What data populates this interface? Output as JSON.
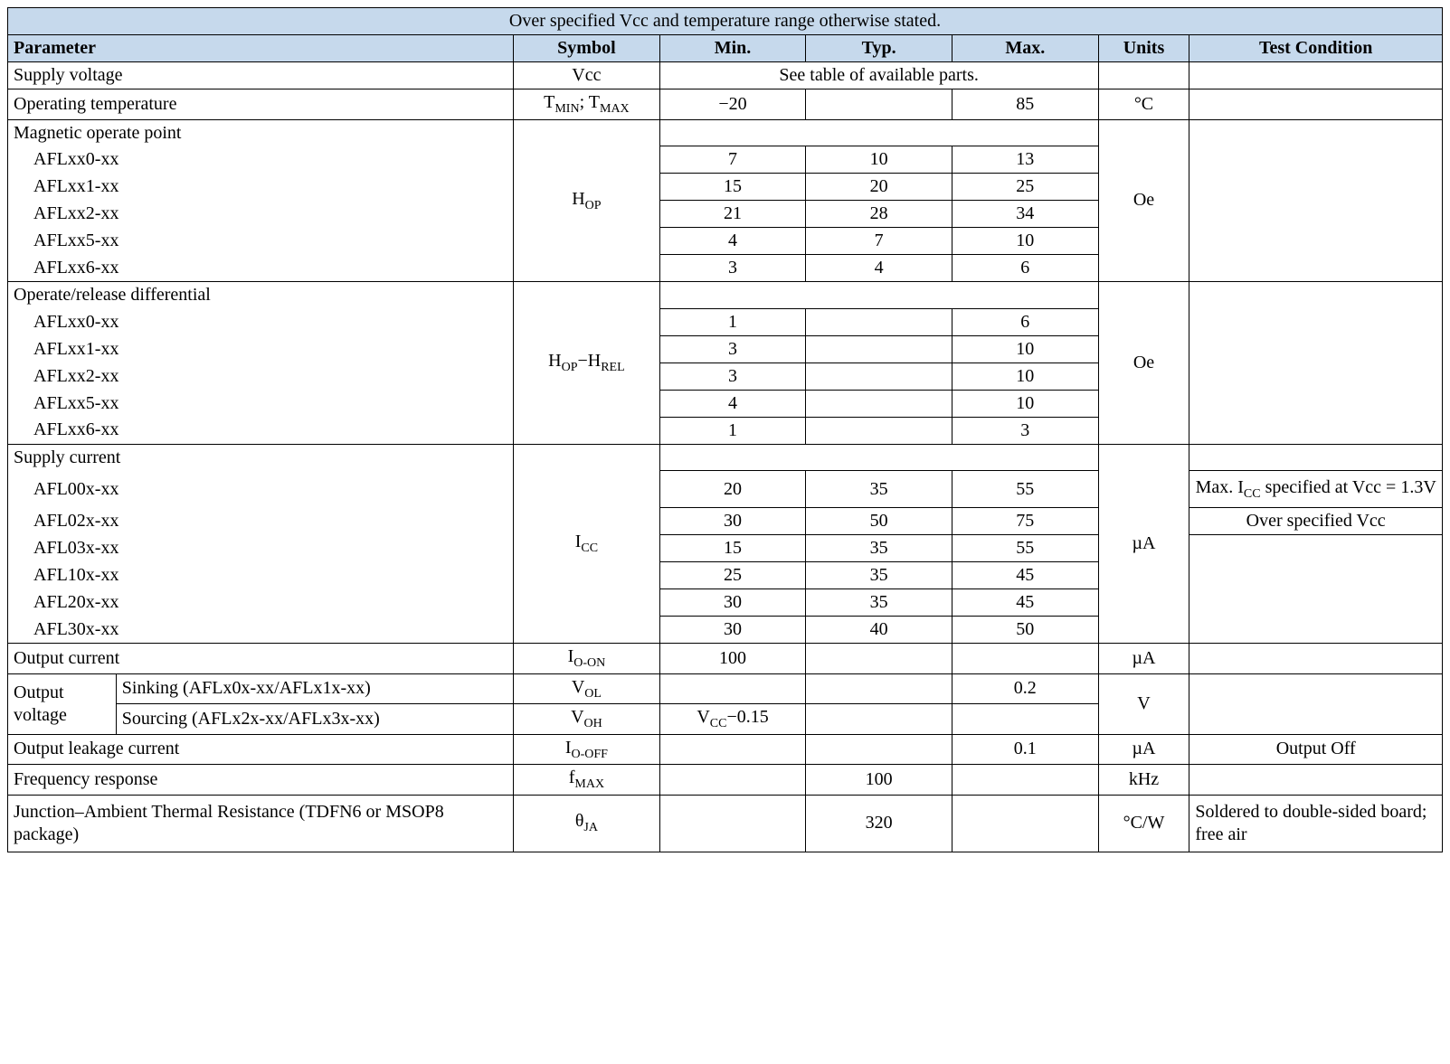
{
  "title": "Over specified Vcc and temperature range otherwise stated.",
  "headers": {
    "parameter": "Parameter",
    "symbol": "Symbol",
    "min": "Min.",
    "typ": "Typ.",
    "max": "Max.",
    "units": "Units",
    "test": "Test Condition"
  },
  "colors": {
    "header_bg": "#c6d9ec",
    "border": "#000000",
    "text": "#000000"
  },
  "supply_voltage": {
    "param": "Supply voltage",
    "symbol": "Vcc",
    "note": "See table of available parts."
  },
  "op_temp": {
    "param": "Operating temperature",
    "symbol_pre1": "T",
    "symbol_sub1": "MIN",
    "symbol_sep": "; ",
    "symbol_pre2": "T",
    "symbol_sub2": "MAX",
    "min": "−20",
    "max": "85",
    "units": "°C"
  },
  "mag_op": {
    "title": "Magnetic operate point",
    "symbol_pre": "H",
    "symbol_sub": "OP",
    "units": "Oe",
    "rows": [
      {
        "p": "AFLxx0-xx",
        "min": "7",
        "typ": "10",
        "max": "13"
      },
      {
        "p": "AFLxx1-xx",
        "min": "15",
        "typ": "20",
        "max": "25"
      },
      {
        "p": "AFLxx2-xx",
        "min": "21",
        "typ": "28",
        "max": "34"
      },
      {
        "p": "AFLxx5-xx",
        "min": "4",
        "typ": "7",
        "max": "10"
      },
      {
        "p": "AFLxx6-xx",
        "min": "3",
        "typ": "4",
        "max": "6"
      }
    ]
  },
  "op_rel": {
    "title": "Operate/release differential",
    "symbol_pre1": "H",
    "symbol_sub1": "OP",
    "symbol_sep": "−",
    "symbol_pre2": "H",
    "symbol_sub2": "REL",
    "units": "Oe",
    "rows": [
      {
        "p": "AFLxx0-xx",
        "min": "1",
        "typ": "",
        "max": "6"
      },
      {
        "p": "AFLxx1-xx",
        "min": "3",
        "typ": "",
        "max": "10"
      },
      {
        "p": "AFLxx2-xx",
        "min": "3",
        "typ": "",
        "max": "10"
      },
      {
        "p": "AFLxx5-xx",
        "min": "4",
        "typ": "",
        "max": "10"
      },
      {
        "p": "AFLxx6-xx",
        "min": "1",
        "typ": "",
        "max": "3"
      }
    ]
  },
  "supply_cur": {
    "title": "Supply current",
    "symbol_pre": "I",
    "symbol_sub": "CC",
    "units": "µA",
    "rows": [
      {
        "p": "AFL00x-xx",
        "min": "20",
        "typ": "35",
        "max": "55",
        "test_html": "Max. I<sub>CC</sub> specified at Vcc = 1.3V"
      },
      {
        "p": "AFL02x-xx",
        "min": "30",
        "typ": "50",
        "max": "75",
        "test": "Over specified Vcc"
      },
      {
        "p": "AFL03x-xx",
        "min": "15",
        "typ": "35",
        "max": "55",
        "test": ""
      },
      {
        "p": "AFL10x-xx",
        "min": "25",
        "typ": "35",
        "max": "45",
        "test": ""
      },
      {
        "p": "AFL20x-xx",
        "min": "30",
        "typ": "35",
        "max": "45",
        "test": ""
      },
      {
        "p": "AFL30x-xx",
        "min": "30",
        "typ": "40",
        "max": "50",
        "test": ""
      }
    ]
  },
  "out_cur": {
    "param": "Output current",
    "symbol_pre": "I",
    "symbol_sub": "O-ON",
    "min": "100",
    "units": "µA"
  },
  "out_volt": {
    "param": "Output voltage",
    "sink_label": "Sinking (AFLx0x-xx/AFLx1x-xx)",
    "src_label": "Sourcing (AFLx2x-xx/AFLx3x-xx)",
    "vol_pre": "V",
    "vol_sub": "OL",
    "voh_pre": "V",
    "voh_sub": "OH",
    "vol_max": "0.2",
    "voh_min_pre": "V",
    "voh_min_sub": "CC",
    "voh_min_suffix": "−0.15",
    "units": "V"
  },
  "leak": {
    "param": "Output leakage current",
    "symbol_pre": "I",
    "symbol_sub": "O-OFF",
    "max": "0.1",
    "units": "µA",
    "test": "Output Off"
  },
  "freq": {
    "param": "Frequency response",
    "symbol_pre": "f",
    "symbol_sub": "MAX",
    "typ": "100",
    "units": "kHz"
  },
  "thermal": {
    "param": "Junction–Ambient Thermal Resistance (TDFN6 or MSOP8 package)",
    "symbol_pre": "θ",
    "symbol_sub": "JA",
    "typ": "320",
    "units": "°C/W",
    "test": "Soldered to double-sided board;\nfree air"
  }
}
